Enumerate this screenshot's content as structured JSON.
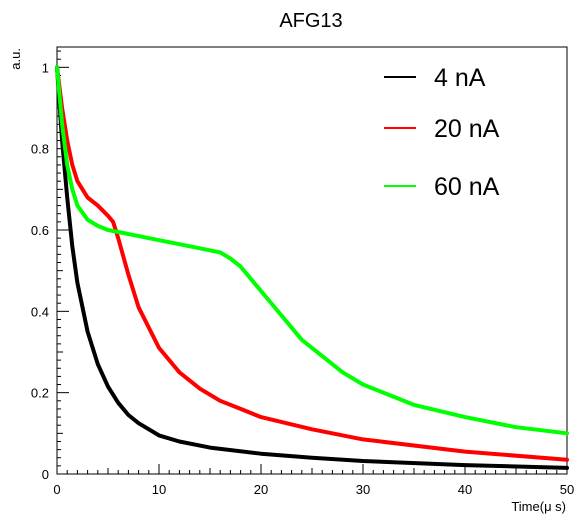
{
  "chart_data": {
    "type": "line",
    "title": "AFG13",
    "xlabel": "Time(μ s)",
    "ylabel": "a.u.",
    "xlim": [
      0,
      50
    ],
    "ylim": [
      0,
      1.05
    ],
    "x_ticks": [
      0,
      10,
      20,
      30,
      40,
      50
    ],
    "x_tick_labels": [
      "0",
      "10",
      "20",
      "30",
      "40",
      "50"
    ],
    "y_ticks": [
      0,
      0.2,
      0.4,
      0.6,
      0.8,
      1
    ],
    "y_tick_labels": [
      "0",
      "0.2",
      "0.4",
      "0.6",
      "0.8",
      "1"
    ],
    "grid": false,
    "legend_position": "top-right",
    "series": [
      {
        "name": "4 nA",
        "color": "#000000",
        "x": [
          0,
          0.5,
          1,
          1.5,
          2,
          3,
          4,
          5,
          6,
          7,
          8,
          10,
          12,
          15,
          20,
          25,
          30,
          40,
          50
        ],
        "y": [
          1.0,
          0.82,
          0.68,
          0.56,
          0.47,
          0.35,
          0.27,
          0.215,
          0.175,
          0.145,
          0.125,
          0.095,
          0.08,
          0.065,
          0.05,
          0.04,
          0.032,
          0.022,
          0.015
        ]
      },
      {
        "name": "20 nA",
        "color": "#ff0000",
        "x": [
          0,
          0.5,
          1,
          1.5,
          2,
          3,
          4,
          5,
          5.5,
          6,
          7,
          8,
          10,
          12,
          14,
          16,
          18,
          20,
          25,
          30,
          40,
          50
        ],
        "y": [
          1.0,
          0.9,
          0.82,
          0.76,
          0.72,
          0.68,
          0.66,
          0.635,
          0.62,
          0.58,
          0.49,
          0.41,
          0.31,
          0.25,
          0.21,
          0.18,
          0.16,
          0.14,
          0.11,
          0.085,
          0.055,
          0.035
        ]
      },
      {
        "name": "60 nA",
        "color": "#00ff00",
        "x": [
          0,
          0.5,
          1,
          1.5,
          2,
          3,
          4,
          5,
          6,
          8,
          10,
          12,
          14,
          16,
          17,
          18,
          19,
          20,
          22,
          24,
          26,
          28,
          30,
          35,
          40,
          45,
          50
        ],
        "y": [
          1.0,
          0.86,
          0.76,
          0.7,
          0.66,
          0.625,
          0.61,
          0.6,
          0.595,
          0.585,
          0.575,
          0.565,
          0.555,
          0.545,
          0.53,
          0.51,
          0.48,
          0.45,
          0.39,
          0.33,
          0.29,
          0.25,
          0.22,
          0.17,
          0.14,
          0.115,
          0.1
        ]
      }
    ]
  }
}
